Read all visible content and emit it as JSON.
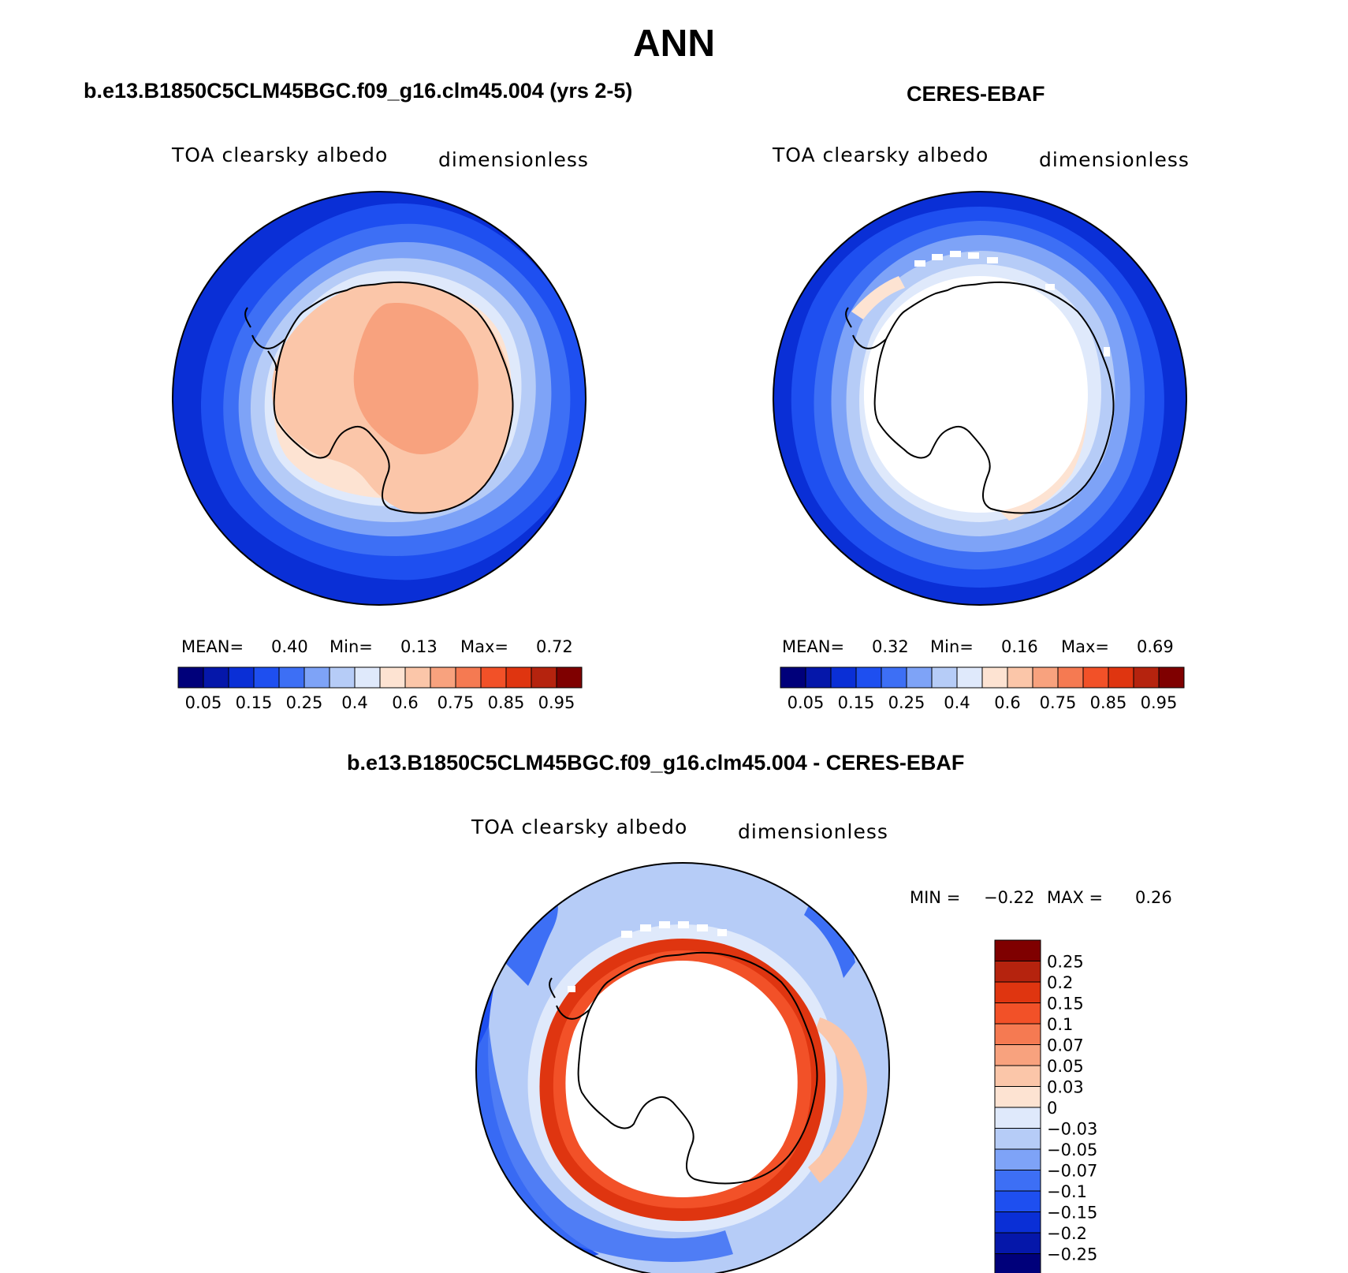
{
  "page": {
    "title": "ANN",
    "left_title": "b.e13.B1850C5CLM45BGC.f09_g16.clm45.004 (yrs 2-5)",
    "right_title": "CERES-EBAF",
    "diff_title": "b.e13.B1850C5CLM45BGC.f09_g16.clm45.004 - CERES-EBAF"
  },
  "chart_data": [
    {
      "type": "heatmap",
      "projection": "south polar stereographic",
      "title": "b.e13.B1850C5CLM45BGC.f09_g16.clm45.004 (yrs 2-5)",
      "variable": "TOA clearsky albedo",
      "units": "dimensionless",
      "stats": {
        "mean_label": "MEAN=",
        "mean": "0.40",
        "min_label": "Min=",
        "min": "0.13",
        "max_label": "Max=",
        "max": "0.72"
      },
      "colorbar_ticks": [
        "0.05",
        "0.15",
        "0.25",
        "0.4",
        "0.6",
        "0.75",
        "0.85",
        "0.95"
      ],
      "levels": [
        0.05,
        0.1,
        0.15,
        0.2,
        0.25,
        0.3,
        0.4,
        0.5,
        0.6,
        0.7,
        0.75,
        0.8,
        0.85,
        0.9,
        0.95
      ],
      "colorbar_colors": [
        "#00007a",
        "#0517aa",
        "#0a2fd6",
        "#1e4ff0",
        "#3d6ff5",
        "#7ea3f7",
        "#b6ccf7",
        "#dfe9fb",
        "#fde3d2",
        "#fbc6a9",
        "#f8a27e",
        "#f57a52",
        "#f25128",
        "#df3510",
        "#b5230e",
        "#7f0000"
      ]
    },
    {
      "type": "heatmap",
      "projection": "south polar stereographic",
      "title": "CERES-EBAF",
      "variable": "TOA clearsky albedo",
      "units": "dimensionless",
      "stats": {
        "mean_label": "MEAN=",
        "mean": "0.32",
        "min_label": "Min=",
        "min": "0.16",
        "max_label": "Max=",
        "max": "0.69"
      },
      "colorbar_ticks": [
        "0.05",
        "0.15",
        "0.25",
        "0.4",
        "0.6",
        "0.75",
        "0.85",
        "0.95"
      ],
      "levels": [
        0.05,
        0.1,
        0.15,
        0.2,
        0.25,
        0.3,
        0.4,
        0.5,
        0.6,
        0.7,
        0.75,
        0.8,
        0.85,
        0.9,
        0.95
      ],
      "colorbar_colors": [
        "#00007a",
        "#0517aa",
        "#0a2fd6",
        "#1e4ff0",
        "#3d6ff5",
        "#7ea3f7",
        "#b6ccf7",
        "#dfe9fb",
        "#fde3d2",
        "#fbc6a9",
        "#f8a27e",
        "#f57a52",
        "#f25128",
        "#df3510",
        "#b5230e",
        "#7f0000"
      ]
    },
    {
      "type": "heatmap",
      "projection": "south polar stereographic",
      "title": "b.e13.B1850C5CLM45BGC.f09_g16.clm45.004 - CERES-EBAF",
      "variable": "TOA clearsky albedo",
      "units": "dimensionless",
      "stats": {
        "min_label": "MIN =",
        "min": "−0.22",
        "max_label": "MAX =",
        "max": "0.26"
      },
      "colorbar_ticks": [
        "0.25",
        "0.2",
        "0.15",
        "0.1",
        "0.07",
        "0.05",
        "0.03",
        "0",
        "−0.03",
        "−0.05",
        "−0.07",
        "−0.1",
        "−0.15",
        "−0.2",
        "−0.25"
      ],
      "levels": [
        0.25,
        0.2,
        0.15,
        0.1,
        0.07,
        0.05,
        0.03,
        0,
        -0.03,
        -0.05,
        -0.07,
        -0.1,
        -0.15,
        -0.2,
        -0.25
      ],
      "colorbar_colors": [
        "#7f0000",
        "#b5230e",
        "#df3510",
        "#f25128",
        "#f57a52",
        "#f8a27e",
        "#fbc6a9",
        "#fde3d2",
        "#dfe9fb",
        "#b6ccf7",
        "#7ea3f7",
        "#3d6ff5",
        "#1e4ff0",
        "#0a2fd6",
        "#0517aa",
        "#00007a"
      ]
    }
  ]
}
